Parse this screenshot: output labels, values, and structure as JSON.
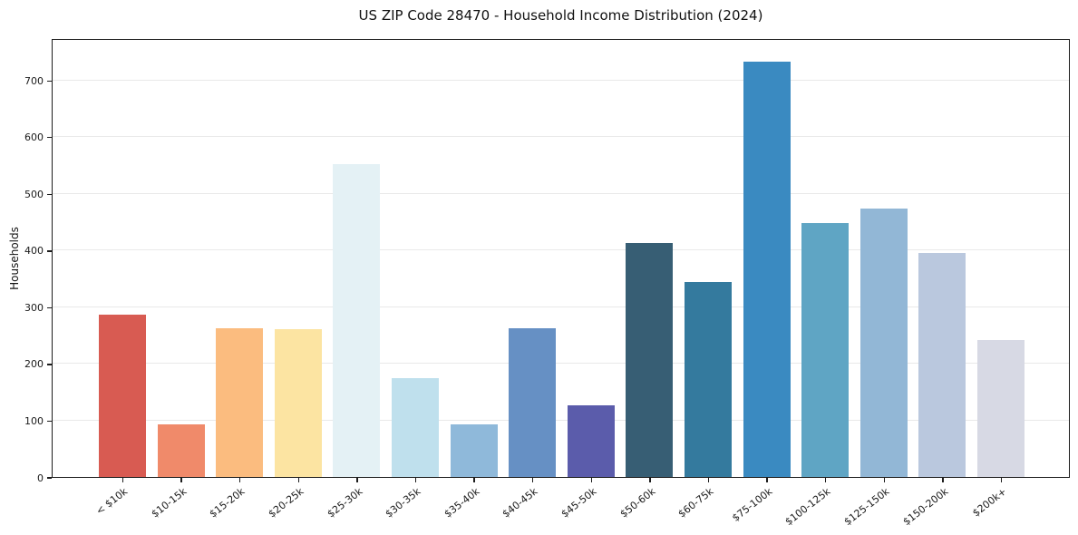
{
  "title": "US ZIP Code 28470 - Household Income Distribution (2024)",
  "chart_data": {
    "type": "bar",
    "title": "US ZIP Code 28470 - Household Income Distribution (2024)",
    "xlabel": "",
    "ylabel": "Households",
    "categories": [
      "< $10k",
      "$10-15k",
      "$15-20k",
      "$20-25k",
      "$25-30k",
      "$30-35k",
      "$35-40k",
      "$40-45k",
      "$45-50k",
      "$50-60k",
      "$60-75k",
      "$75-100k",
      "$100-125k",
      "$125-150k",
      "$150-200k",
      "$200k+"
    ],
    "values": [
      286,
      93,
      262,
      260,
      551,
      175,
      93,
      262,
      127,
      413,
      344,
      733,
      447,
      473,
      395,
      241
    ],
    "bar_colors": [
      "#d85b52",
      "#f08a6a",
      "#fbbc7f",
      "#fce4a2",
      "#e4f1f5",
      "#bfe0ed",
      "#8fb9da",
      "#6690c4",
      "#5b5cab",
      "#375e74",
      "#347a9e",
      "#3a8ac1",
      "#5fa5c4",
      "#92b7d6",
      "#bac8de",
      "#d7d9e4"
    ],
    "yticks": [
      0,
      100,
      200,
      300,
      400,
      500,
      600,
      700
    ],
    "ylim": [
      0,
      774
    ],
    "grid": "horizontal",
    "legend": "none",
    "grid_color": "#e9e9e9",
    "spine_color": "#1c1c1c",
    "text_color": "#1a1a1a",
    "background_color": "#ffffff",
    "x_tick_rotation_deg": -38
  }
}
